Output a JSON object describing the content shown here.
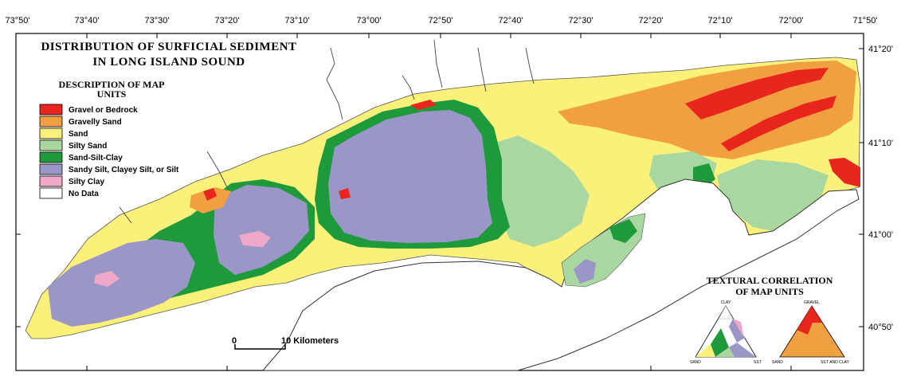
{
  "title": {
    "line1": "DISTRIBUTION OF SURFICIAL SEDIMENT",
    "line2": "IN LONG ISLAND SOUND"
  },
  "longitude_ticks": [
    "73°50'",
    "73°40'",
    "73°30'",
    "73°20'",
    "73°10'",
    "73°00'",
    "72°50'",
    "72°40'",
    "72°30'",
    "72°20'",
    "72°10'",
    "72°00'",
    "71°50'"
  ],
  "latitude_ticks": [
    "41°20'",
    "41°10'",
    "41°00'",
    "40°50'"
  ],
  "legend": {
    "heading_line1": "DESCRIPTION OF MAP",
    "heading_line2": "UNITS",
    "items": [
      {
        "label": "Gravel or Bedrock",
        "color": "#e8261e"
      },
      {
        "label": "Gravelly Sand",
        "color": "#f0a040"
      },
      {
        "label": "Sand",
        "color": "#fbf07a"
      },
      {
        "label": "Silty Sand",
        "color": "#a8d8a0"
      },
      {
        "label": "Sand-Silt-Clay",
        "color": "#1e9a3a"
      },
      {
        "label": "Sandy Silt, Clayey Silt, or Silt",
        "color": "#9a96c8"
      },
      {
        "label": "Silty Clay",
        "color": "#f0a8c8"
      },
      {
        "label": "No Data",
        "color": "#ffffff"
      }
    ]
  },
  "scale_bar": {
    "start_label": "0",
    "end_label": "10 Kilometers"
  },
  "textural_correlation": {
    "heading_line1": "TEXTURAL CORRELATION",
    "heading_line2": "OF MAP UNITS",
    "left_triangle": {
      "top": "CLAY",
      "left": "SAND",
      "right": "SILT"
    },
    "right_triangle": {
      "top": "GRAVEL",
      "left": "SAND",
      "right": "SILT AND CLAY"
    }
  }
}
